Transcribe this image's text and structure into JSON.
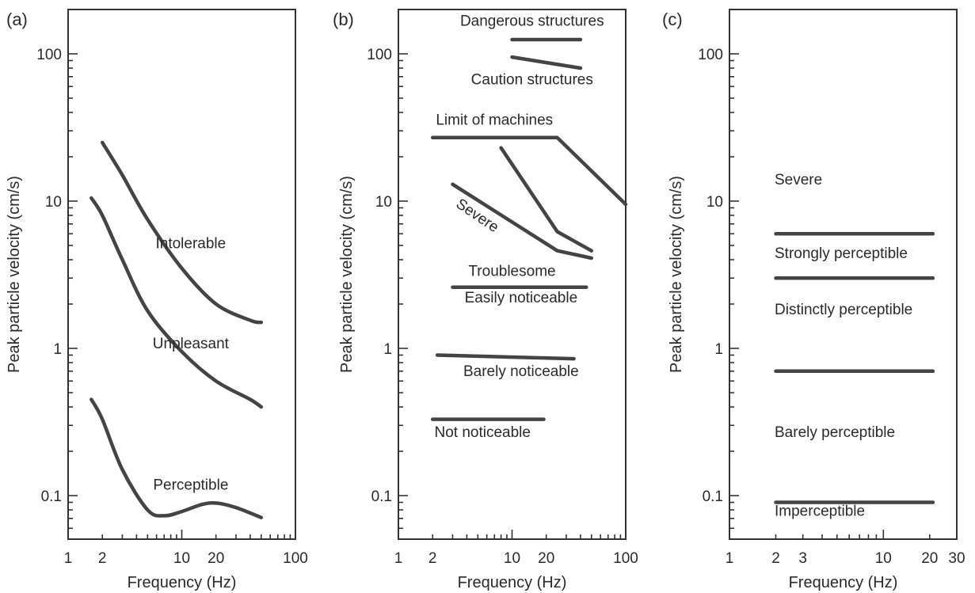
{
  "chart_data": [
    {
      "type": "line",
      "panel_label": "(a)",
      "xlabel": "Frequency (Hz)",
      "ylabel": "Peak particle velocity (cm/s)",
      "xscale": "log",
      "yscale": "log",
      "xlim": [
        1,
        100
      ],
      "ylim": [
        0.05,
        200
      ],
      "xticks": [
        1,
        2,
        10,
        20,
        100
      ],
      "xtick_labels": [
        "1",
        "2",
        "10",
        "20",
        "100"
      ],
      "yticks": [
        0.1,
        1,
        10,
        100
      ],
      "ytick_labels": [
        "0.1",
        "1",
        "10",
        "100"
      ],
      "series": [
        {
          "x": [
            2,
            3,
            5,
            10,
            20,
            40,
            50
          ],
          "y": [
            25,
            15,
            7.5,
            3.5,
            2.0,
            1.55,
            1.5
          ]
        },
        {
          "x": [
            1.6,
            2,
            3,
            5,
            10,
            20,
            40,
            50
          ],
          "y": [
            10.5,
            8,
            4,
            1.8,
            0.95,
            0.6,
            0.45,
            0.4
          ]
        },
        {
          "x": [
            1.6,
            2,
            3,
            5,
            7,
            10,
            15,
            20,
            30,
            50
          ],
          "y": [
            0.45,
            0.33,
            0.15,
            0.08,
            0.073,
            0.078,
            0.087,
            0.089,
            0.083,
            0.071
          ]
        }
      ],
      "annotations": [
        {
          "text": "Intolerable",
          "x": 12,
          "y": 4.8
        },
        {
          "text": "Unpleasant",
          "x": 12,
          "y": 1.0
        },
        {
          "text": "Perceptible",
          "x": 12,
          "y": 0.11
        }
      ]
    },
    {
      "type": "line",
      "panel_label": "(b)",
      "xlabel": "Frequency (Hz)",
      "ylabel": "Peak particle velocity (cm/s)",
      "xscale": "log",
      "yscale": "log",
      "xlim": [
        1,
        100
      ],
      "ylim": [
        0.05,
        200
      ],
      "xticks": [
        1,
        2,
        10,
        20,
        100
      ],
      "xtick_labels": [
        "1",
        "2",
        "10",
        "20",
        "100"
      ],
      "yticks": [
        0.1,
        1,
        10,
        100
      ],
      "ytick_labels": [
        "0.1",
        "1",
        "10",
        "100"
      ],
      "series": [
        {
          "x": [
            10,
            40
          ],
          "y": [
            125,
            125
          ]
        },
        {
          "x": [
            10,
            40
          ],
          "y": [
            95,
            80
          ]
        },
        {
          "x": [
            2,
            25,
            100
          ],
          "y": [
            27,
            27,
            9.5
          ]
        },
        {
          "x": [
            8,
            25,
            50
          ],
          "y": [
            23,
            6.2,
            4.6
          ]
        },
        {
          "x": [
            3,
            25,
            50
          ],
          "y": [
            13,
            4.6,
            4.1
          ]
        },
        {
          "x": [
            3,
            45
          ],
          "y": [
            2.6,
            2.6
          ]
        },
        {
          "x": [
            2.2,
            35
          ],
          "y": [
            0.9,
            0.85
          ]
        },
        {
          "x": [
            2,
            19
          ],
          "y": [
            0.33,
            0.33
          ]
        }
      ],
      "annotations": [
        {
          "text": "Dangerous structures",
          "x": 15,
          "y": 155
        },
        {
          "text": "Caution structures",
          "x": 15,
          "y": 62
        },
        {
          "text": "Limit of machines",
          "x": 7,
          "y": 33
        },
        {
          "text": "Severe",
          "x": 4.7,
          "y": 7.5
        },
        {
          "text": "Troublesome",
          "x": 10,
          "y": 3.1
        },
        {
          "text": "Easily noticeable",
          "x": 12,
          "y": 2.05
        },
        {
          "text": "Barely noticeable",
          "x": 12,
          "y": 0.65
        },
        {
          "text": "Not noticeable",
          "x": 5.5,
          "y": 0.25
        }
      ]
    },
    {
      "type": "line",
      "panel_label": "(c)",
      "xlabel": "Frequency (Hz)",
      "ylabel": "Peak particle velocity (cm/s)",
      "xscale": "log",
      "yscale": "log",
      "xlim": [
        1,
        30
      ],
      "ylim": [
        0.05,
        200
      ],
      "xticks": [
        1,
        2,
        3,
        10,
        20,
        30
      ],
      "xtick_labels": [
        "1",
        "2",
        "3",
        "10",
        "20",
        "30"
      ],
      "yticks": [
        0.1,
        1,
        10,
        100
      ],
      "ytick_labels": [
        "0.1",
        "1",
        "10",
        "100"
      ],
      "series": [
        {
          "x": [
            2,
            21
          ],
          "y": [
            6,
            6
          ]
        },
        {
          "x": [
            2,
            21
          ],
          "y": [
            3,
            3
          ]
        },
        {
          "x": [
            2,
            21
          ],
          "y": [
            0.7,
            0.7
          ]
        },
        {
          "x": [
            2,
            21
          ],
          "y": [
            0.09,
            0.09
          ]
        }
      ],
      "annotations": [
        {
          "text": "Severe",
          "x": 2.0,
          "y": 13
        },
        {
          "text": "Strongly perceptible",
          "x": 2.0,
          "y": 4.1
        },
        {
          "text": "Distinctly perceptible",
          "x": 2.0,
          "y": 1.7
        },
        {
          "text": "Barely perceptible",
          "x": 2.0,
          "y": 0.25
        },
        {
          "text": "Imperceptible",
          "x": 2.0,
          "y": 0.073
        }
      ]
    }
  ]
}
